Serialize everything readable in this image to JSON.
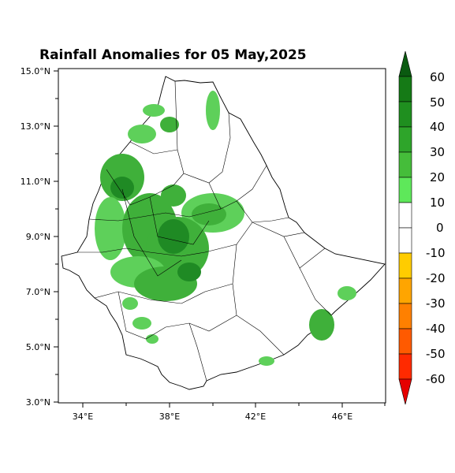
{
  "title": "Rainfall Anomalies for 05 May,2025",
  "y_ticks": [
    "15.0°N",
    "13.0°N",
    "11.0°N",
    "9.0°N",
    "7.0°N",
    "5.0°N",
    "3.0°N"
  ],
  "x_ticks": [
    "34°E",
    "38°E",
    "42°E",
    "46°E"
  ],
  "colorbar": {
    "labels": [
      "60",
      "50",
      "40",
      "30",
      "20",
      "10",
      "0",
      "-10",
      "-20",
      "-30",
      "-40",
      "-50",
      "-60"
    ],
    "colors": [
      "#0a5a10",
      "#157a16",
      "#1f8f1f",
      "#2ea52a",
      "#45bd3a",
      "#5ee85a",
      "#ffffff",
      "#ffffff",
      "#ffcc00",
      "#ffa500",
      "#ff8000",
      "#ff5a00",
      "#ff2a00",
      "#e60000"
    ]
  },
  "anomaly_colors": {
    "light": "#5ed05a",
    "medium": "#3fb03a",
    "dark": "#1f8a24"
  }
}
